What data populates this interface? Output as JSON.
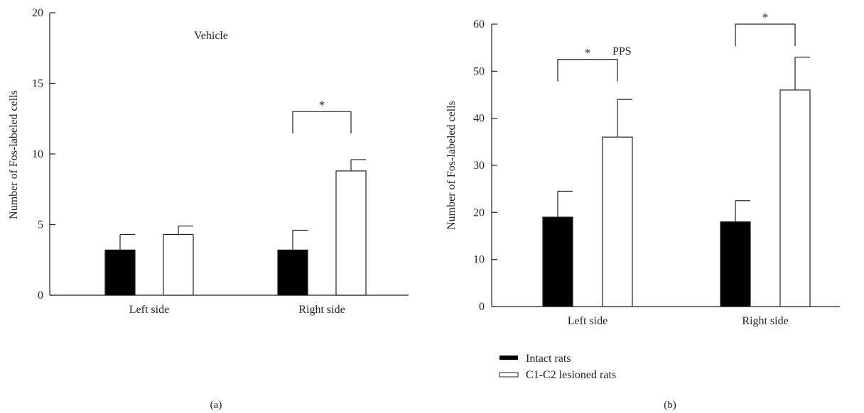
{
  "chart_data": [
    {
      "type": "bar",
      "panel_label": "(a)",
      "annotation": "Vehicle",
      "ylabel": "Number of Fos-labeled cells",
      "xlabel": "",
      "categories": [
        "Left side",
        "Right side"
      ],
      "ylim": [
        0,
        20
      ],
      "yticks": [
        0,
        5,
        10,
        15,
        20
      ],
      "series": [
        {
          "name": "Intact rats",
          "values": [
            3.2,
            3.2
          ],
          "errors": [
            1.1,
            1.4
          ],
          "fill": "#000000"
        },
        {
          "name": "C1-C2 lesioned rats",
          "values": [
            4.3,
            8.8
          ],
          "errors": [
            0.6,
            0.8
          ],
          "fill": "#ffffff"
        }
      ],
      "significance": [
        {
          "category_index": 1,
          "label": "*",
          "level": 13
        }
      ],
      "grid": false
    },
    {
      "type": "bar",
      "panel_label": "(b)",
      "annotation": "PPS",
      "ylabel": "Number of Fos-labeled cells",
      "xlabel": "",
      "categories": [
        "Left side",
        "Right side"
      ],
      "ylim": [
        0,
        60
      ],
      "yticks": [
        0,
        10,
        20,
        30,
        40,
        50,
        60
      ],
      "series": [
        {
          "name": "Intact rats",
          "values": [
            19,
            18
          ],
          "errors": [
            5.5,
            4.5
          ],
          "fill": "#000000"
        },
        {
          "name": "C1-C2 lesioned rats",
          "values": [
            36,
            46
          ],
          "errors": [
            8,
            7
          ],
          "fill": "#ffffff"
        }
      ],
      "significance": [
        {
          "category_index": 0,
          "label": "*",
          "level": 52.5
        },
        {
          "category_index": 1,
          "label": "*",
          "level": 60
        }
      ],
      "grid": false
    }
  ],
  "legend": {
    "placement": "bottom",
    "items": [
      {
        "label": "Intact rats",
        "fill": "#000000"
      },
      {
        "label": "C1-C2 lesioned rats",
        "fill": "#ffffff"
      }
    ]
  },
  "colors": {
    "ink": "#231f20",
    "dark_bar": "#000000",
    "light_bar": "#ffffff"
  }
}
